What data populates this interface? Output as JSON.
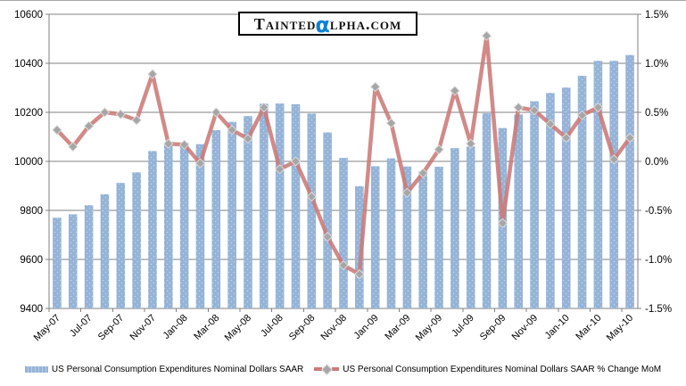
{
  "branding": {
    "logo_prefix": "Tainted",
    "logo_alpha": "α",
    "logo_suffix": "lpha.com",
    "alpha_color": "#0e82d0"
  },
  "colors": {
    "background": "#ffffff",
    "gridline": "#808080",
    "axis_text": "#000000",
    "bar_fill": "#95b3d7",
    "bar_dot": "#c4d6ea",
    "line_stroke": "#cb7a78",
    "marker_fill": "#a6a6a6",
    "marker_stroke": "#dcdcdc"
  },
  "chart_data": {
    "type": "bar",
    "subtype": "combo-bar-line-dual-axis",
    "title": "",
    "xlabel": "",
    "ylabel_left": "",
    "ylabel_right": "",
    "grid": true,
    "legend_position": "bottom",
    "categories": [
      "May-07",
      "Jun-07",
      "Jul-07",
      "Aug-07",
      "Sep-07",
      "Oct-07",
      "Nov-07",
      "Dec-07",
      "Jan-08",
      "Feb-08",
      "Mar-08",
      "Apr-08",
      "May-08",
      "Jun-08",
      "Jul-08",
      "Aug-08",
      "Sep-08",
      "Oct-08",
      "Nov-08",
      "Dec-08",
      "Jan-09",
      "Feb-09",
      "Mar-09",
      "Apr-09",
      "May-09",
      "Jun-09",
      "Jul-09",
      "Aug-09",
      "Sep-09",
      "Oct-09",
      "Nov-09",
      "Dec-09",
      "Jan-10",
      "Feb-10",
      "Mar-10",
      "Apr-10",
      "May-10"
    ],
    "x_axis": {
      "tick_every": 2,
      "visible_tick_labels": [
        "May-07",
        "Jul-07",
        "Sep-07",
        "Nov-07",
        "Jan-08",
        "Mar-08",
        "May-08",
        "Jul-08",
        "Sep-08",
        "Nov-08",
        "Jan-09",
        "Mar-09",
        "May-09",
        "Jul-09",
        "Sep-09",
        "Nov-09",
        "Jan-10",
        "Mar-10",
        "May-10"
      ]
    },
    "left_axis": {
      "min": 9400,
      "max": 10600,
      "step": 200,
      "tick_labels": [
        "9400",
        "9600",
        "9800",
        "10000",
        "10200",
        "10400",
        "10600"
      ]
    },
    "right_axis": {
      "min": -1.5,
      "max": 1.5,
      "step": 0.5,
      "tick_labels": [
        "-1.5%",
        "-1.0%",
        "-0.5%",
        "0.0%",
        "0.5%",
        "1.0%",
        "1.5%"
      ]
    },
    "series": [
      {
        "name": "US Personal Consumption Expenditures Nominal Dollars SAAR",
        "type": "bar",
        "axis": "left",
        "color": "#95b3d7",
        "values": [
          9770,
          9784,
          9821,
          9866,
          9912,
          9955,
          10042,
          10074,
          10076,
          10070,
          10127,
          10161,
          10185,
          10235,
          10236,
          10233,
          10195,
          10118,
          10014,
          9899,
          9980,
          10012,
          9979,
          9960,
          9978,
          10054,
          10061,
          10196,
          10136,
          10192,
          10245,
          10279,
          10301,
          10349,
          10410,
          10410,
          10434
        ]
      },
      {
        "name": "US Personal Consumption Expenditures Nominal Dollars SAAR % Change MoM",
        "type": "line",
        "axis": "right",
        "color": "#cb7a78",
        "marker": "diamond",
        "marker_color": "#a6a6a6",
        "values": [
          0.32,
          0.15,
          0.36,
          0.5,
          0.48,
          0.42,
          0.89,
          0.18,
          0.17,
          -0.02,
          0.5,
          0.32,
          0.23,
          0.55,
          -0.08,
          0.0,
          -0.36,
          -0.77,
          -1.06,
          -1.15,
          0.76,
          0.39,
          -0.32,
          -0.12,
          0.12,
          0.72,
          0.18,
          1.28,
          -0.63,
          0.55,
          0.52,
          0.38,
          0.24,
          0.47,
          0.55,
          0.02,
          0.24
        ]
      }
    ]
  }
}
